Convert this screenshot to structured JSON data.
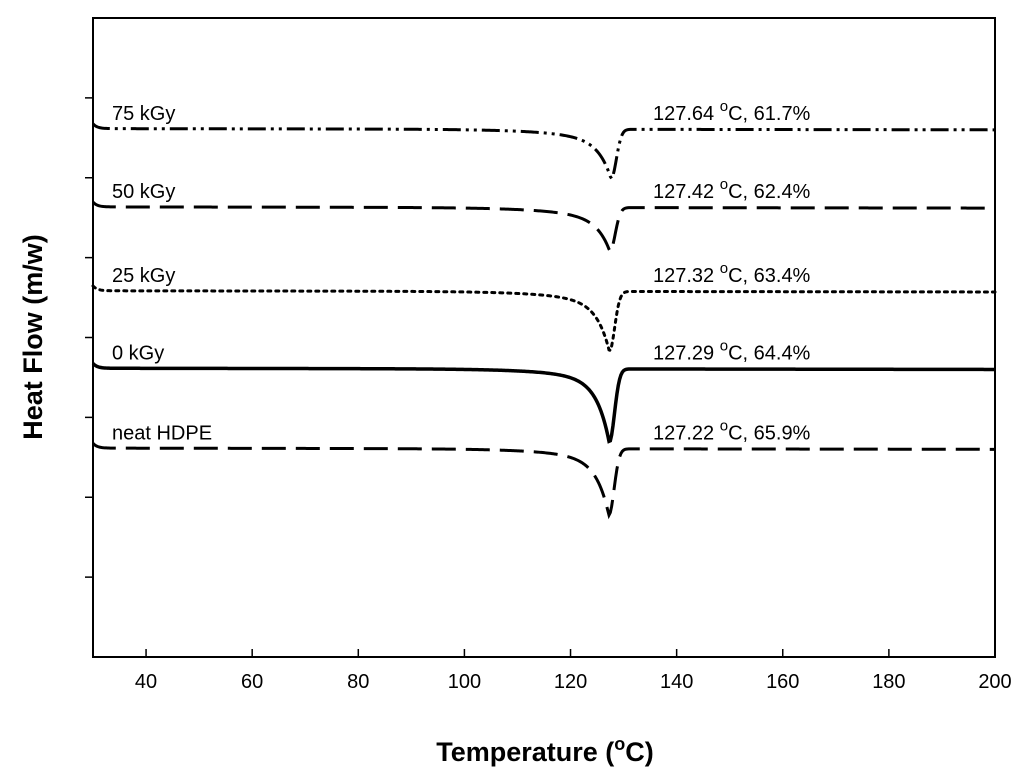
{
  "chart_data": {
    "type": "line",
    "title": "",
    "xlabel_main": "Temperature (",
    "xlabel_sup": "o",
    "xlabel_tail": "C)",
    "ylabel": "Heat Flow (m/w)",
    "xlim": [
      30,
      200
    ],
    "ylim": [
      0,
      8
    ],
    "x_ticks": [
      "40",
      "60",
      "80",
      "100",
      "120",
      "140",
      "160",
      "180",
      "200"
    ],
    "x_tick_values": [
      40,
      60,
      80,
      100,
      120,
      140,
      160,
      180,
      200
    ],
    "y_tick_values": [
      1,
      2,
      3,
      4,
      5,
      6,
      7
    ],
    "y_tick_labels_shown": false,
    "series": [
      {
        "name": "75 kGy",
        "line_style": "dash-dot-dot",
        "baseline": 6.6,
        "peak_temp": 127.64,
        "peak_depth": 0.62,
        "annotation_value": "127.64",
        "annotation_unit": "o",
        "annotation_tail": "C, 61.7%"
      },
      {
        "name": "50 kGy",
        "line_style": "long-dash",
        "baseline": 5.62,
        "peak_temp": 127.42,
        "peak_depth": 0.55,
        "annotation_value": "127.42",
        "annotation_unit": "o",
        "annotation_tail": "C, 62.4%"
      },
      {
        "name": "25 kGy",
        "line_style": "dotted",
        "baseline": 4.57,
        "peak_temp": 127.32,
        "peak_depth": 0.75,
        "annotation_value": "127.32",
        "annotation_unit": "o",
        "annotation_tail": "C, 63.4%"
      },
      {
        "name": "0 kGy",
        "line_style": "solid",
        "baseline": 3.6,
        "peak_temp": 127.29,
        "peak_depth": 0.92,
        "annotation_value": "127.29",
        "annotation_unit": "o",
        "annotation_tail": "C, 64.4%"
      },
      {
        "name": "neat HDPE",
        "line_style": "long-dash",
        "baseline": 2.6,
        "peak_temp": 127.22,
        "peak_depth": 0.83,
        "annotation_value": "127.22",
        "annotation_unit": "o",
        "annotation_tail": "C, 65.9%"
      }
    ],
    "grid": false,
    "legend": "none"
  }
}
